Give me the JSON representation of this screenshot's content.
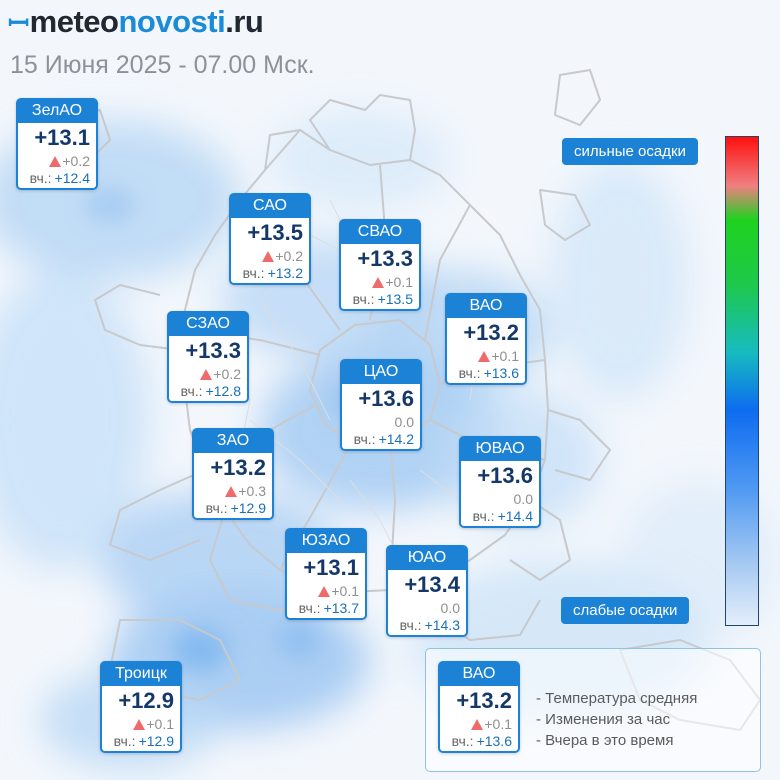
{
  "header": {
    "logo_mark": "ꟷ",
    "logo_part1": "meteo",
    "logo_part2": "novosti",
    "logo_part3": ".ru",
    "subtitle": "15 Июня 2025 - 07.00 Мск."
  },
  "districts": [
    {
      "id": "zelao",
      "name": "ЗелАО",
      "temp": "+13.1",
      "delta": "+0.2",
      "delta_up": true,
      "prev_label": "вч.:",
      "prev": "+12.4"
    },
    {
      "id": "sao",
      "name": "САО",
      "temp": "+13.5",
      "delta": "+0.2",
      "delta_up": true,
      "prev_label": "вч.:",
      "prev": "+13.2"
    },
    {
      "id": "svao",
      "name": "СВАО",
      "temp": "+13.3",
      "delta": "+0.1",
      "delta_up": true,
      "prev_label": "вч.:",
      "prev": "+13.5"
    },
    {
      "id": "vao",
      "name": "ВАО",
      "temp": "+13.2",
      "delta": "+0.1",
      "delta_up": true,
      "prev_label": "вч.:",
      "prev": "+13.6"
    },
    {
      "id": "szao",
      "name": "СЗАО",
      "temp": "+13.3",
      "delta": "+0.2",
      "delta_up": true,
      "prev_label": "вч.:",
      "prev": "+12.8"
    },
    {
      "id": "cao",
      "name": "ЦАО",
      "temp": "+13.6",
      "delta": "0.0",
      "delta_up": false,
      "prev_label": "вч.:",
      "prev": "+14.2"
    },
    {
      "id": "zao",
      "name": "ЗАО",
      "temp": "+13.2",
      "delta": "+0.3",
      "delta_up": true,
      "prev_label": "вч.:",
      "prev": "+12.9"
    },
    {
      "id": "yuvao",
      "name": "ЮВАО",
      "temp": "+13.6",
      "delta": "0.0",
      "delta_up": false,
      "prev_label": "вч.:",
      "prev": "+14.4"
    },
    {
      "id": "yuzao",
      "name": "ЮЗАО",
      "temp": "+13.1",
      "delta": "+0.1",
      "delta_up": true,
      "prev_label": "вч.:",
      "prev": "+13.7"
    },
    {
      "id": "yuao",
      "name": "ЮАО",
      "temp": "+13.4",
      "delta": "0.0",
      "delta_up": false,
      "prev_label": "вч.:",
      "prev": "+14.3"
    },
    {
      "id": "troitsk",
      "name": "Троицк",
      "temp": "+12.9",
      "delta": "+0.1",
      "delta_up": true,
      "prev_label": "вч.:",
      "prev": "+12.9"
    }
  ],
  "scale": {
    "high_label": "сильные осадки",
    "low_label": "слабые осадки",
    "colors": {
      "high": "#ff1010",
      "mid": "#1fd21f",
      "low": "#e3eefb"
    }
  },
  "legend": {
    "sample": {
      "name": "ВАО",
      "temp": "+13.2",
      "delta": "+0.1",
      "delta_up": true,
      "prev_label": "вч.:",
      "prev": "+13.6"
    },
    "lines": [
      "- Температура средняя",
      "- Изменения за час",
      "- Вчера в это время"
    ]
  },
  "colors": {
    "accent": "#1c82d6",
    "temp_text": "#15386b",
    "delta_up": "#ef6b6b",
    "prev_value": "#1a70b8"
  }
}
